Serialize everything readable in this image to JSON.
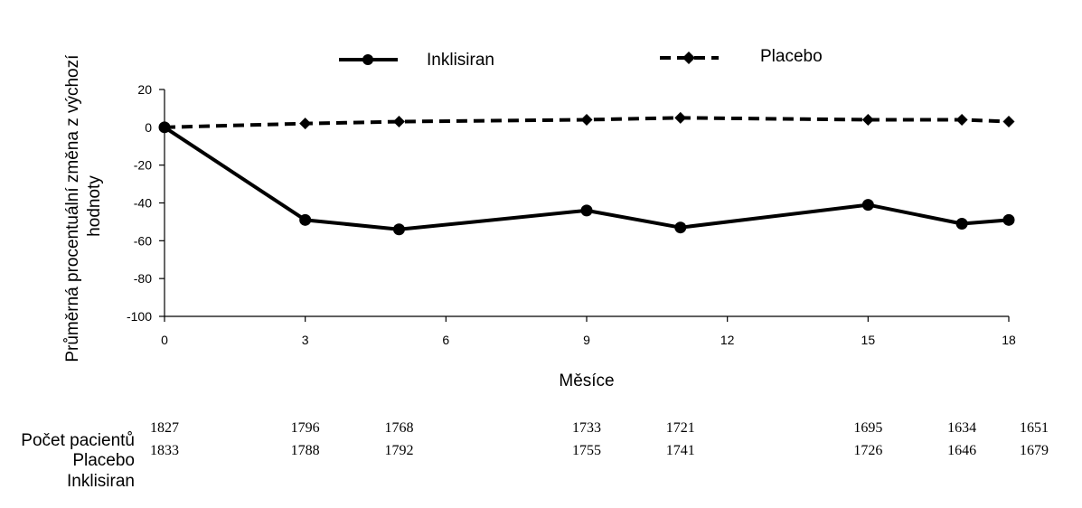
{
  "chart_data": {
    "type": "line",
    "title": "",
    "xlabel": "Měsíce",
    "ylabel_lines": [
      "Průměrná procentuální změna z výchozí",
      "hodnoty"
    ],
    "xlim": [
      0,
      18
    ],
    "ylim": [
      -100,
      20
    ],
    "x_ticks": [
      0,
      3,
      6,
      9,
      12,
      15,
      18
    ],
    "y_ticks": [
      20,
      0,
      -20,
      -40,
      -60,
      -80,
      -100
    ],
    "grid": false,
    "legend_position": "top",
    "series": [
      {
        "name": "Inklisiran",
        "style": "solid",
        "marker": "circle",
        "color": "#000000",
        "x": [
          0,
          3,
          5,
          9,
          11,
          15,
          17,
          18
        ],
        "values": [
          0,
          -49,
          -54,
          -44,
          -53,
          -41,
          -51,
          -49
        ]
      },
      {
        "name": "Placebo",
        "style": "dashed",
        "marker": "diamond",
        "color": "#000000",
        "x": [
          0,
          3,
          5,
          9,
          11,
          15,
          17,
          18
        ],
        "values": [
          0,
          2,
          3,
          4,
          5,
          4,
          4,
          3
        ]
      }
    ],
    "patients_table": {
      "labels": [
        "Počet pacientů",
        "Placebo",
        "Inklisiran"
      ],
      "x": [
        0,
        3,
        5,
        9,
        11,
        15,
        17,
        18
      ],
      "placebo": [
        "1827",
        "1796",
        "1768",
        "1733",
        "1721",
        "1695",
        "1634",
        "1651"
      ],
      "inklisiran": [
        "1833",
        "1788",
        "1792",
        "1755",
        "1741",
        "1726",
        "1646",
        "1679"
      ]
    }
  }
}
